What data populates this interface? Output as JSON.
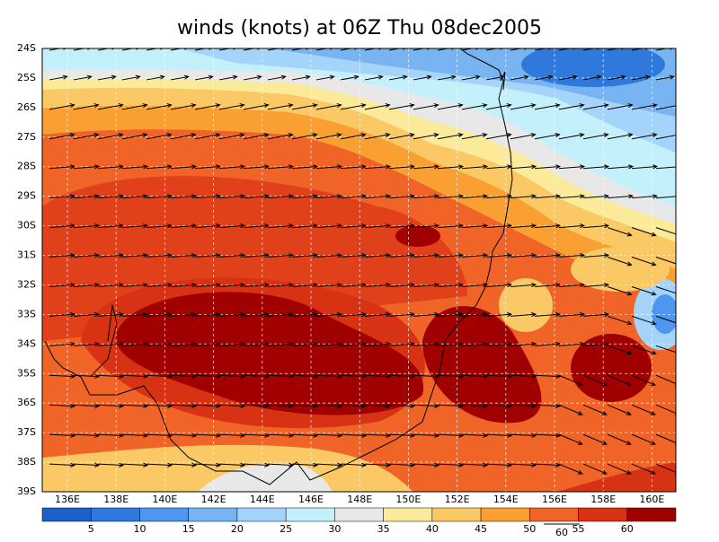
{
  "title": "winds (knots) at 06Z Thu 08dec2005",
  "lat_labels": [
    "24S",
    "25S",
    "26S",
    "27S",
    "28S",
    "29S",
    "30S",
    "31S",
    "32S",
    "33S",
    "34S",
    "35S",
    "36S",
    "37S",
    "38S",
    "39S"
  ],
  "lon_labels": [
    "136E",
    "138E",
    "140E",
    "142E",
    "144E",
    "146E",
    "148E",
    "150E",
    "152E",
    "154E",
    "156E",
    "158E",
    "160E"
  ],
  "colorbar": {
    "colors": [
      "#1e5fc8",
      "#2f78dc",
      "#4e96ee",
      "#78b4f2",
      "#a4d4fa",
      "#c4f0fb",
      "#e8e8e8",
      "#faea9a",
      "#fac864",
      "#faa032",
      "#f06428",
      "#d83214",
      "#a00000"
    ],
    "labels": [
      "5",
      "10",
      "15",
      "20",
      "25",
      "30",
      "35",
      "40",
      "45",
      "50",
      "55",
      "60"
    ]
  },
  "vector_reference": "60"
}
